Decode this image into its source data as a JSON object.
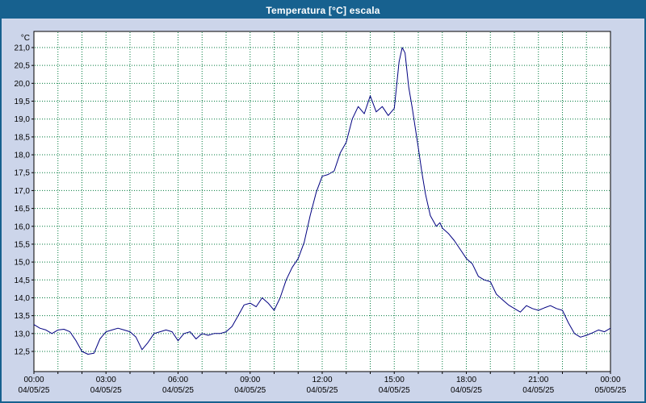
{
  "title": "Temperatura [°C] escala",
  "colors": {
    "titlebar_bg": "#17618f",
    "titlebar_fg": "#ffffff",
    "window_bg": "#ccd5ea",
    "plot_bg": "#ffffff",
    "plot_border": "#000000",
    "grid": "#007a3d",
    "line": "#000080",
    "axis_text": "#000000"
  },
  "chart_data": {
    "type": "line",
    "title": "Temperatura [°C] escala",
    "ylabel": "°C",
    "ylim": [
      12.0,
      21.45
    ],
    "grid": true,
    "grid_style": "dotted",
    "x_hours_range": [
      0,
      24
    ],
    "x_minor_grid_every_hours": 1,
    "x_major_ticks": [
      0,
      3,
      6,
      9,
      12,
      15,
      18,
      21,
      24
    ],
    "x_tick_times": [
      "00:00",
      "03:00",
      "06:00",
      "09:00",
      "12:00",
      "15:00",
      "18:00",
      "21:00",
      "00:00"
    ],
    "x_tick_dates": [
      "04/05/25",
      "04/05/25",
      "04/05/25",
      "04/05/25",
      "04/05/25",
      "04/05/25",
      "04/05/25",
      "04/05/25",
      "05/05/25"
    ],
    "y_ticks": [
      21.0,
      20.5,
      20.0,
      19.5,
      19.0,
      18.5,
      18.0,
      17.5,
      17.0,
      16.5,
      16.0,
      15.5,
      15.0,
      14.5,
      14.0,
      13.5,
      13.0,
      12.5
    ],
    "y_tick_labels": [
      "21,0",
      "20,5",
      "20,0",
      "19,5",
      "19,0",
      "18,5",
      "18,0",
      "17,5",
      "17,0",
      "16,5",
      "16,0",
      "15,5",
      "15,0",
      "14,5",
      "14,0",
      "13,5",
      "13,0",
      "12,5"
    ],
    "series": [
      {
        "name": "Temperatura",
        "color": "#000080",
        "points": [
          [
            0,
            13.25
          ],
          [
            0.25,
            13.15
          ],
          [
            0.5,
            13.1
          ],
          [
            0.75,
            13.0
          ],
          [
            1,
            13.1
          ],
          [
            1.25,
            13.12
          ],
          [
            1.5,
            13.05
          ],
          [
            1.75,
            12.8
          ],
          [
            2,
            12.5
          ],
          [
            2.25,
            12.42
          ],
          [
            2.5,
            12.45
          ],
          [
            2.75,
            12.85
          ],
          [
            3,
            13.05
          ],
          [
            3.25,
            13.1
          ],
          [
            3.5,
            13.15
          ],
          [
            3.75,
            13.1
          ],
          [
            4,
            13.05
          ],
          [
            4.25,
            12.9
          ],
          [
            4.5,
            12.55
          ],
          [
            4.75,
            12.75
          ],
          [
            5,
            13.0
          ],
          [
            5.25,
            13.05
          ],
          [
            5.5,
            13.1
          ],
          [
            5.75,
            13.05
          ],
          [
            6,
            12.8
          ],
          [
            6.25,
            13.0
          ],
          [
            6.5,
            13.05
          ],
          [
            6.75,
            12.85
          ],
          [
            7,
            13.0
          ],
          [
            7.25,
            12.95
          ],
          [
            7.5,
            13.0
          ],
          [
            7.75,
            13.0
          ],
          [
            8,
            13.05
          ],
          [
            8.25,
            13.2
          ],
          [
            8.5,
            13.5
          ],
          [
            8.75,
            13.8
          ],
          [
            9,
            13.85
          ],
          [
            9.25,
            13.75
          ],
          [
            9.5,
            14.0
          ],
          [
            9.75,
            13.85
          ],
          [
            10,
            13.65
          ],
          [
            10.25,
            14.0
          ],
          [
            10.5,
            14.5
          ],
          [
            10.75,
            14.85
          ],
          [
            11,
            15.1
          ],
          [
            11.25,
            15.55
          ],
          [
            11.5,
            16.3
          ],
          [
            11.75,
            16.95
          ],
          [
            12,
            17.4
          ],
          [
            12.25,
            17.45
          ],
          [
            12.5,
            17.55
          ],
          [
            12.75,
            18.05
          ],
          [
            13,
            18.35
          ],
          [
            13.25,
            19.0
          ],
          [
            13.5,
            19.35
          ],
          [
            13.75,
            19.15
          ],
          [
            14,
            19.65
          ],
          [
            14.25,
            19.2
          ],
          [
            14.5,
            19.35
          ],
          [
            14.75,
            19.1
          ],
          [
            15,
            19.3
          ],
          [
            15.2,
            20.6
          ],
          [
            15.33,
            21.0
          ],
          [
            15.45,
            20.85
          ],
          [
            15.6,
            19.9
          ],
          [
            15.75,
            19.3
          ],
          [
            16,
            18.2
          ],
          [
            16.15,
            17.5
          ],
          [
            16.3,
            16.9
          ],
          [
            16.5,
            16.3
          ],
          [
            16.75,
            16.0
          ],
          [
            16.9,
            16.1
          ],
          [
            17,
            15.95
          ],
          [
            17.25,
            15.8
          ],
          [
            17.5,
            15.6
          ],
          [
            17.75,
            15.35
          ],
          [
            18,
            15.1
          ],
          [
            18.25,
            14.95
          ],
          [
            18.5,
            14.6
          ],
          [
            18.75,
            14.5
          ],
          [
            19,
            14.45
          ],
          [
            19.25,
            14.1
          ],
          [
            19.5,
            13.95
          ],
          [
            19.75,
            13.8
          ],
          [
            20,
            13.7
          ],
          [
            20.25,
            13.6
          ],
          [
            20.5,
            13.78
          ],
          [
            20.75,
            13.7
          ],
          [
            21,
            13.65
          ],
          [
            21.25,
            13.72
          ],
          [
            21.5,
            13.78
          ],
          [
            21.75,
            13.7
          ],
          [
            22,
            13.65
          ],
          [
            22.25,
            13.3
          ],
          [
            22.5,
            13.0
          ],
          [
            22.75,
            12.9
          ],
          [
            23,
            12.95
          ],
          [
            23.25,
            13.02
          ],
          [
            23.5,
            13.1
          ],
          [
            23.75,
            13.05
          ],
          [
            24,
            13.15
          ]
        ]
      }
    ],
    "legend": null
  }
}
